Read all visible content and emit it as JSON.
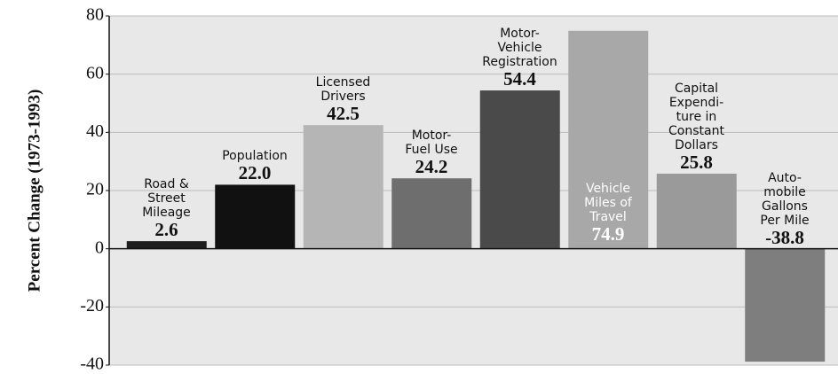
{
  "chart_data": {
    "type": "bar",
    "y_label": "Percent Change (1973-1993)",
    "categories": [
      "Road &\nStreet\nMileage",
      "Population",
      "Licensed\nDrivers",
      "Motor-\nFuel Use",
      "Motor-\nVehicle\nRegistration",
      "Vehicle\nMiles of\nTravel",
      "Capital\nExpendi-\nture in\nConstant\nDollars",
      "Auto-\nmobile\nGallons\nPer Mile"
    ],
    "values": [
      2.6,
      22.0,
      42.5,
      24.2,
      54.4,
      74.9,
      25.8,
      -38.8
    ],
    "value_labels": [
      "2.6",
      "22.0",
      "42.5",
      "24.2",
      "54.4",
      "74.9",
      "25.8",
      "-38.8"
    ],
    "colors": [
      "#1e1e1e",
      "#111111",
      "#b5b5b5",
      "#6e6e6e",
      "#4a4a4a",
      "#a8a8a8",
      "#9a9a9a",
      "#7e7e7e"
    ],
    "ylim": [
      -40,
      80
    ],
    "yticks": [
      -40,
      -20,
      0,
      20,
      40,
      60,
      80
    ],
    "grid": true
  }
}
